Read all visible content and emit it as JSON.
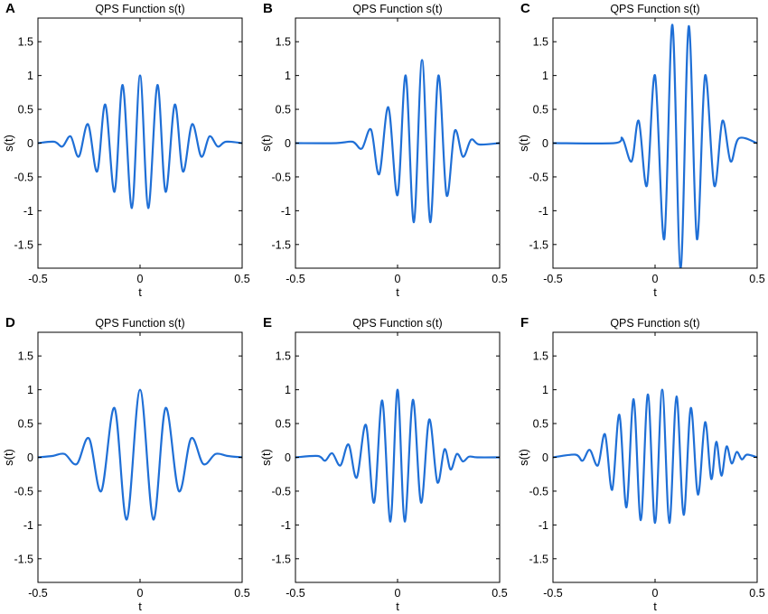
{
  "chart_data": [
    {
      "label": "A",
      "type": "line",
      "title": "QPS Function s(t)",
      "xlabel": "t",
      "ylabel": "s(t)",
      "xlim": [
        -0.5,
        0.5
      ],
      "ylim": [
        -1.85,
        1.85
      ],
      "xticks": [
        "-0.5",
        "0",
        "0.5"
      ],
      "yticks": [
        "-1.5",
        "-1",
        "-0.5",
        "0",
        "0.5",
        "1",
        "1.5"
      ],
      "ytick_values": [
        -1.5,
        -1,
        -0.5,
        0,
        0.5,
        1,
        1.5
      ],
      "series": [
        {
          "color": "#1f6fd6",
          "x": [
            -0.5,
            -0.42,
            -0.38,
            -0.34,
            -0.3,
            -0.255,
            -0.21,
            -0.17,
            -0.125,
            -0.085,
            -0.04,
            0,
            0.04,
            0.085,
            0.125,
            0.17,
            0.21,
            0.255,
            0.3,
            0.34,
            0.38,
            0.42,
            0.5
          ],
          "y": [
            0.0,
            0.02,
            -0.05,
            0.1,
            -0.2,
            0.28,
            -0.42,
            0.57,
            -0.72,
            0.86,
            -0.96,
            1.0,
            -0.96,
            0.86,
            -0.72,
            0.57,
            -0.42,
            0.28,
            -0.2,
            0.1,
            -0.05,
            0.02,
            0.0
          ]
        }
      ]
    },
    {
      "label": "B",
      "type": "line",
      "title": "QPS Function s(t)",
      "xlabel": "t",
      "ylabel": "s(t)",
      "xlim": [
        -0.5,
        0.5
      ],
      "ylim": [
        -1.85,
        1.85
      ],
      "xticks": [
        "-0.5",
        "0",
        "0.5"
      ],
      "yticks": [
        "-1.5",
        "-1",
        "-0.5",
        "0",
        "0.5",
        "1",
        "1.5"
      ],
      "ytick_values": [
        -1.5,
        -1,
        -0.5,
        0,
        0.5,
        1,
        1.5
      ],
      "series": [
        {
          "color": "#1f6fd6",
          "x": [
            -0.5,
            -0.3,
            -0.22,
            -0.175,
            -0.13,
            -0.09,
            -0.045,
            0.0,
            0.04,
            0.08,
            0.12,
            0.16,
            0.2,
            0.24,
            0.28,
            0.32,
            0.36,
            0.4,
            0.5
          ],
          "y": [
            0.0,
            0.0,
            0.02,
            -0.08,
            0.2,
            -0.46,
            0.53,
            -0.77,
            1.0,
            -1.17,
            1.23,
            -1.17,
            1.0,
            -0.77,
            0.18,
            -0.2,
            0.05,
            -0.02,
            0.0
          ]
        }
      ]
    },
    {
      "label": "C",
      "type": "line",
      "title": "QPS Function s(t)",
      "xlabel": "t",
      "ylabel": "s(t)",
      "xlim": [
        -0.5,
        0.5
      ],
      "ylim": [
        -1.85,
        1.85
      ],
      "xticks": [
        "-0.5",
        "0",
        "0.5"
      ],
      "yticks": [
        "-1.5",
        "-1",
        "-0.5",
        "0",
        "0.5",
        "1",
        "1.5"
      ],
      "ytick_values": [
        -1.5,
        -1,
        -0.5,
        0,
        0.5,
        1,
        1.5
      ],
      "series": [
        {
          "color": "#1f6fd6",
          "x": [
            -0.5,
            -0.2,
            -0.16,
            -0.115,
            -0.08,
            -0.04,
            0.0,
            0.045,
            0.085,
            0.125,
            0.165,
            0.205,
            0.245,
            0.29,
            0.33,
            0.37,
            0.41,
            0.5
          ],
          "y": [
            0.0,
            0.0,
            0.07,
            -0.27,
            0.33,
            -0.63,
            1.0,
            -1.42,
            1.75,
            -1.85,
            1.73,
            -1.42,
            1.0,
            -0.63,
            0.33,
            -0.27,
            0.07,
            0.0
          ]
        }
      ]
    },
    {
      "label": "D",
      "type": "line",
      "title": "QPS Function s(t)",
      "xlabel": "t",
      "ylabel": "s(t)",
      "xlim": [
        -0.5,
        0.5
      ],
      "ylim": [
        -1.85,
        1.85
      ],
      "xticks": [
        "-0.5",
        "0",
        "0.5"
      ],
      "yticks": [
        "-1.5",
        "-1",
        "-0.5",
        "0",
        "0.5",
        "1",
        "1.5"
      ],
      "ytick_values": [
        -1.5,
        -1,
        -0.5,
        0,
        0.5,
        1,
        1.5
      ],
      "series": [
        {
          "color": "#1f6fd6",
          "x": [
            -0.5,
            -0.43,
            -0.37,
            -0.31,
            -0.25,
            -0.19,
            -0.125,
            -0.065,
            0.0,
            0.065,
            0.125,
            0.19,
            0.25,
            0.31,
            0.37,
            0.43,
            0.5
          ],
          "y": [
            0.0,
            0.02,
            0.05,
            -0.1,
            0.28,
            -0.5,
            0.73,
            -0.92,
            1.0,
            -0.92,
            0.73,
            -0.5,
            0.28,
            -0.1,
            0.05,
            0.02,
            0.0
          ]
        }
      ]
    },
    {
      "label": "E",
      "type": "line",
      "title": "QPS Function s(t)",
      "xlabel": "t",
      "ylabel": "s(t)",
      "xlim": [
        -0.5,
        0.5
      ],
      "ylim": [
        -1.85,
        1.85
      ],
      "xticks": [
        "-0.5",
        "0",
        "0.5"
      ],
      "yticks": [
        "-1.5",
        "-1",
        "-0.5",
        "0",
        "0.5",
        "1",
        "1.5"
      ],
      "ytick_values": [
        -1.5,
        -1,
        -0.5,
        0,
        0.5,
        1,
        1.5
      ],
      "series": [
        {
          "color": "#1f6fd6",
          "x": [
            -0.5,
            -0.39,
            -0.355,
            -0.32,
            -0.28,
            -0.24,
            -0.2,
            -0.155,
            -0.115,
            -0.075,
            -0.035,
            0.0,
            0.035,
            0.075,
            0.115,
            0.155,
            0.195,
            0.23,
            0.26,
            0.29,
            0.32,
            0.35,
            0.39,
            0.5
          ],
          "y": [
            0.0,
            0.02,
            -0.05,
            0.06,
            -0.12,
            0.19,
            -0.3,
            0.48,
            -0.67,
            0.84,
            -0.95,
            1.0,
            -0.95,
            0.85,
            -0.67,
            0.56,
            -0.37,
            0.12,
            -0.18,
            0.05,
            -0.06,
            0.01,
            0.0,
            0.0
          ]
        }
      ]
    },
    {
      "label": "F",
      "type": "line",
      "title": "QPS Function s(t)",
      "xlabel": "t",
      "ylabel": "s(t)",
      "xlim": [
        -0.5,
        0.5
      ],
      "ylim": [
        -1.85,
        1.85
      ],
      "xticks": [
        "-0.5",
        "0",
        "0.5"
      ],
      "yticks": [
        "-1.5",
        "-1",
        "-0.5",
        "0",
        "0.5",
        "1",
        "1.5"
      ],
      "ytick_values": [
        -1.5,
        -1,
        -0.5,
        0,
        0.5,
        1,
        1.5
      ],
      "series": [
        {
          "color": "#1f6fd6",
          "x": [
            -0.5,
            -0.39,
            -0.355,
            -0.32,
            -0.28,
            -0.245,
            -0.21,
            -0.175,
            -0.14,
            -0.105,
            -0.07,
            -0.035,
            0.0,
            0.035,
            0.07,
            0.105,
            0.14,
            0.175,
            0.21,
            0.245,
            0.275,
            0.3,
            0.325,
            0.35,
            0.375,
            0.4,
            0.425,
            0.45,
            0.5
          ],
          "y": [
            0.0,
            0.04,
            -0.05,
            0.11,
            -0.12,
            0.34,
            -0.48,
            0.63,
            -0.74,
            0.86,
            -0.93,
            0.93,
            -0.97,
            1.0,
            -0.97,
            0.9,
            -0.85,
            0.73,
            -0.55,
            0.52,
            -0.32,
            0.23,
            -0.27,
            0.16,
            -0.09,
            0.08,
            -0.03,
            0.04,
            0.0
          ]
        }
      ]
    }
  ]
}
